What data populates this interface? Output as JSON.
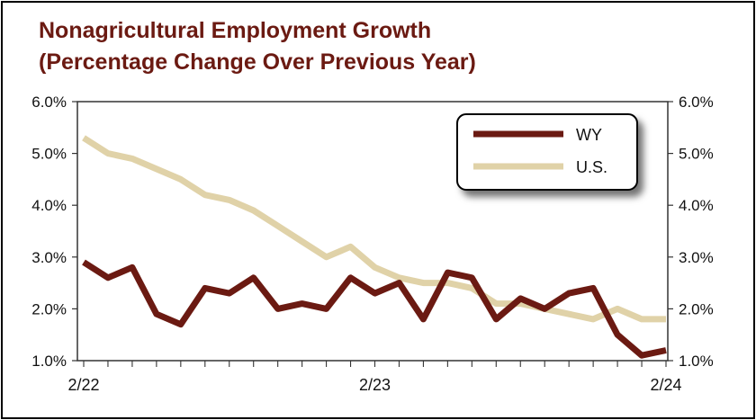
{
  "chart_data": {
    "type": "line",
    "title": "Nonagricultural Employment Growth",
    "subtitle": "(Percentage Change Over Previous Year)",
    "xlabel": "",
    "ylabel": "",
    "ylim": [
      1.0,
      6.0
    ],
    "y_ticks": [
      "1.0%",
      "2.0%",
      "3.0%",
      "4.0%",
      "5.0%",
      "6.0%"
    ],
    "x_tick_labels": [
      "2/22",
      "2/23",
      "2/24"
    ],
    "grid": false,
    "dual_y_axis": true,
    "legend_placement": "top-right",
    "x": [
      "2/22",
      "3/22",
      "4/22",
      "5/22",
      "6/22",
      "7/22",
      "8/22",
      "9/22",
      "10/22",
      "11/22",
      "12/22",
      "1/23",
      "2/23",
      "3/23",
      "4/23",
      "5/23",
      "6/23",
      "7/23",
      "8/23",
      "9/23",
      "10/23",
      "11/23",
      "12/23",
      "1/24",
      "2/24"
    ],
    "series": [
      {
        "name": "WY",
        "color": "#6b1a12",
        "values": [
          2.9,
          2.6,
          2.8,
          1.9,
          1.7,
          2.4,
          2.3,
          2.6,
          2.0,
          2.1,
          2.0,
          2.6,
          2.3,
          2.5,
          1.8,
          2.7,
          2.6,
          1.8,
          2.2,
          2.0,
          2.3,
          2.4,
          1.5,
          1.1,
          1.2
        ]
      },
      {
        "name": "U.S.",
        "color": "#e0d2a8",
        "values": [
          5.3,
          5.0,
          4.9,
          4.7,
          4.5,
          4.2,
          4.1,
          3.9,
          3.6,
          3.3,
          3.0,
          3.2,
          2.8,
          2.6,
          2.5,
          2.5,
          2.4,
          2.1,
          2.1,
          2.0,
          1.9,
          1.8,
          2.0,
          1.8,
          1.8
        ]
      }
    ]
  }
}
